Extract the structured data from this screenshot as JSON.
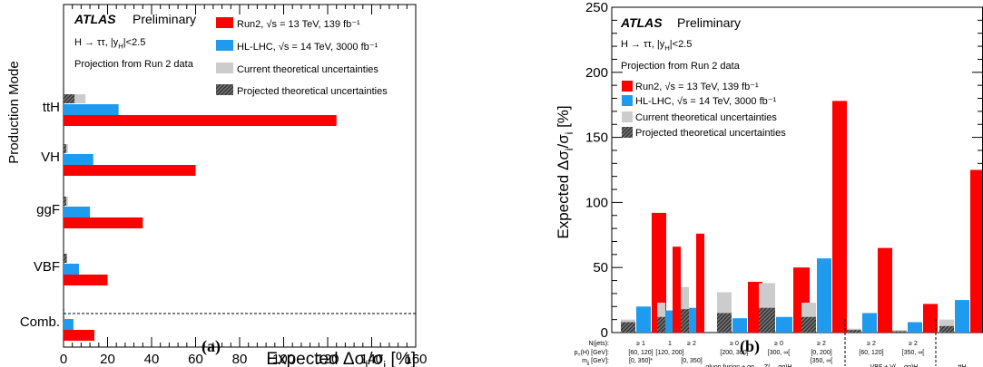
{
  "captions": {
    "a": "(a)",
    "b": "(b)"
  },
  "colors": {
    "run2": "#ff0000",
    "hllhc": "#1e9bef",
    "current_theory": "#cccccc",
    "projected_theory": "hatched-dark-grey"
  },
  "chart_data": [
    {
      "type": "bar",
      "orientation": "horizontal",
      "panel": "a",
      "atlas_label": "ATLAS",
      "atlas_status": "Preliminary",
      "info_lines": [
        "H → ττ, |y_H|<2.5",
        "Projection from Run 2 data"
      ],
      "xlabel": "Expected Δσ_i/σ_i [%]",
      "ylabel": "Production Mode",
      "xlim": [
        0,
        160
      ],
      "x_ticks": [
        "0",
        "20",
        "40",
        "60",
        "80",
        "100",
        "120",
        "140",
        "160"
      ],
      "categories": [
        "Comb.",
        "VBF",
        "ggF",
        "VH",
        "ttH"
      ],
      "legend": [
        "Run2, √s = 13 TeV, 139 fb⁻¹",
        "HL-LHC, √s = 14 TeV, 3000 fb⁻¹",
        "Current theoretical uncertainties",
        "Projected theoretical uncertainties"
      ],
      "legend_position": "top-right",
      "series": [
        {
          "key": "run2",
          "values": [
            14,
            20,
            36,
            60,
            124
          ]
        },
        {
          "key": "hllhc",
          "values": [
            4.5,
            7,
            12,
            13.5,
            25
          ]
        },
        {
          "key": "current_theory",
          "values": [
            0.5,
            1,
            2,
            2,
            10
          ]
        },
        {
          "key": "projected_theory",
          "values": [
            0.3,
            1.5,
            1.2,
            1.2,
            5
          ]
        }
      ],
      "separator_after_category": "Comb."
    },
    {
      "type": "bar",
      "panel": "b",
      "atlas_label": "ATLAS",
      "atlas_status": "Preliminary",
      "info_lines": [
        "H → ττ, |y_H|<2.5",
        "Projection from Run 2 data"
      ],
      "ylabel": "Expected Δσ_i/σ_i [%]",
      "ylim": [
        0,
        250
      ],
      "y_ticks": [
        "0",
        "50",
        "100",
        "150",
        "200",
        "250"
      ],
      "legend": [
        "Run2, √s = 13 TeV, 139 fb⁻¹",
        "HL-LHC, √s = 14 TeV, 3000 fb⁻¹",
        "Current theoretical uncertainties",
        "Projected theoretical uncertainties"
      ],
      "legend_position": "top-left",
      "row_labels": [
        "N(jets):",
        "p_T(H) [GeV]:",
        "m_jj [GeV]:"
      ],
      "bins": [
        {
          "n_jets": "≥ 1",
          "pt": "[60, 120]",
          "mjj": "[0, 350]*",
          "run2": 92,
          "hllhc": 20,
          "current_theory": 10,
          "projected_theory": 8
        },
        {
          "n_jets": "1",
          "pt": "[120, 200]",
          "mjj": "",
          "run2": 66,
          "hllhc": 17,
          "current_theory": 23,
          "projected_theory": 12
        },
        {
          "n_jets": "≥ 2",
          "pt": "",
          "mjj": "[0, 350]",
          "run2": 76,
          "hllhc": 19,
          "current_theory": 35,
          "projected_theory": 18
        },
        {
          "n_jets": "≥ 0",
          "pt": "[200, 300]",
          "mjj": "",
          "run2": 39,
          "hllhc": 11,
          "current_theory": 31,
          "projected_theory": 15
        },
        {
          "n_jets": "≥ 0",
          "pt": "[300, ∞[",
          "mjj": "",
          "run2": 50,
          "hllhc": 12,
          "current_theory": 38,
          "projected_theory": 19
        },
        {
          "n_jets": "≥ 2",
          "pt": "[0, 200]",
          "mjj": "[350, ∞[",
          "run2": 178,
          "hllhc": 57,
          "current_theory": 23,
          "projected_theory": 12
        },
        {
          "n_jets": "≥ 2",
          "pt": "[60, 120]",
          "mjj": "",
          "run2": 65,
          "hllhc": 15,
          "current_theory": 3,
          "projected_theory": 2
        },
        {
          "n_jets": "≥ 2",
          "pt": "[350, ∞[",
          "mjj": "",
          "run2": 22,
          "hllhc": 8,
          "current_theory": 2,
          "projected_theory": 1
        },
        {
          "n_jets": "",
          "pt": "",
          "mjj": "",
          "run2": 125,
          "hllhc": 25,
          "current_theory": 10,
          "projected_theory": 5
        }
      ],
      "groups": [
        {
          "label": "gluon fusion + gg → Z(→ qq)H",
          "first_bin": 0,
          "last_bin": 5
        },
        {
          "label": "VBF + V(→ qq)H",
          "first_bin": 6,
          "last_bin": 7
        },
        {
          "label": "ttH",
          "first_bin": 8,
          "last_bin": 8
        }
      ]
    }
  ]
}
